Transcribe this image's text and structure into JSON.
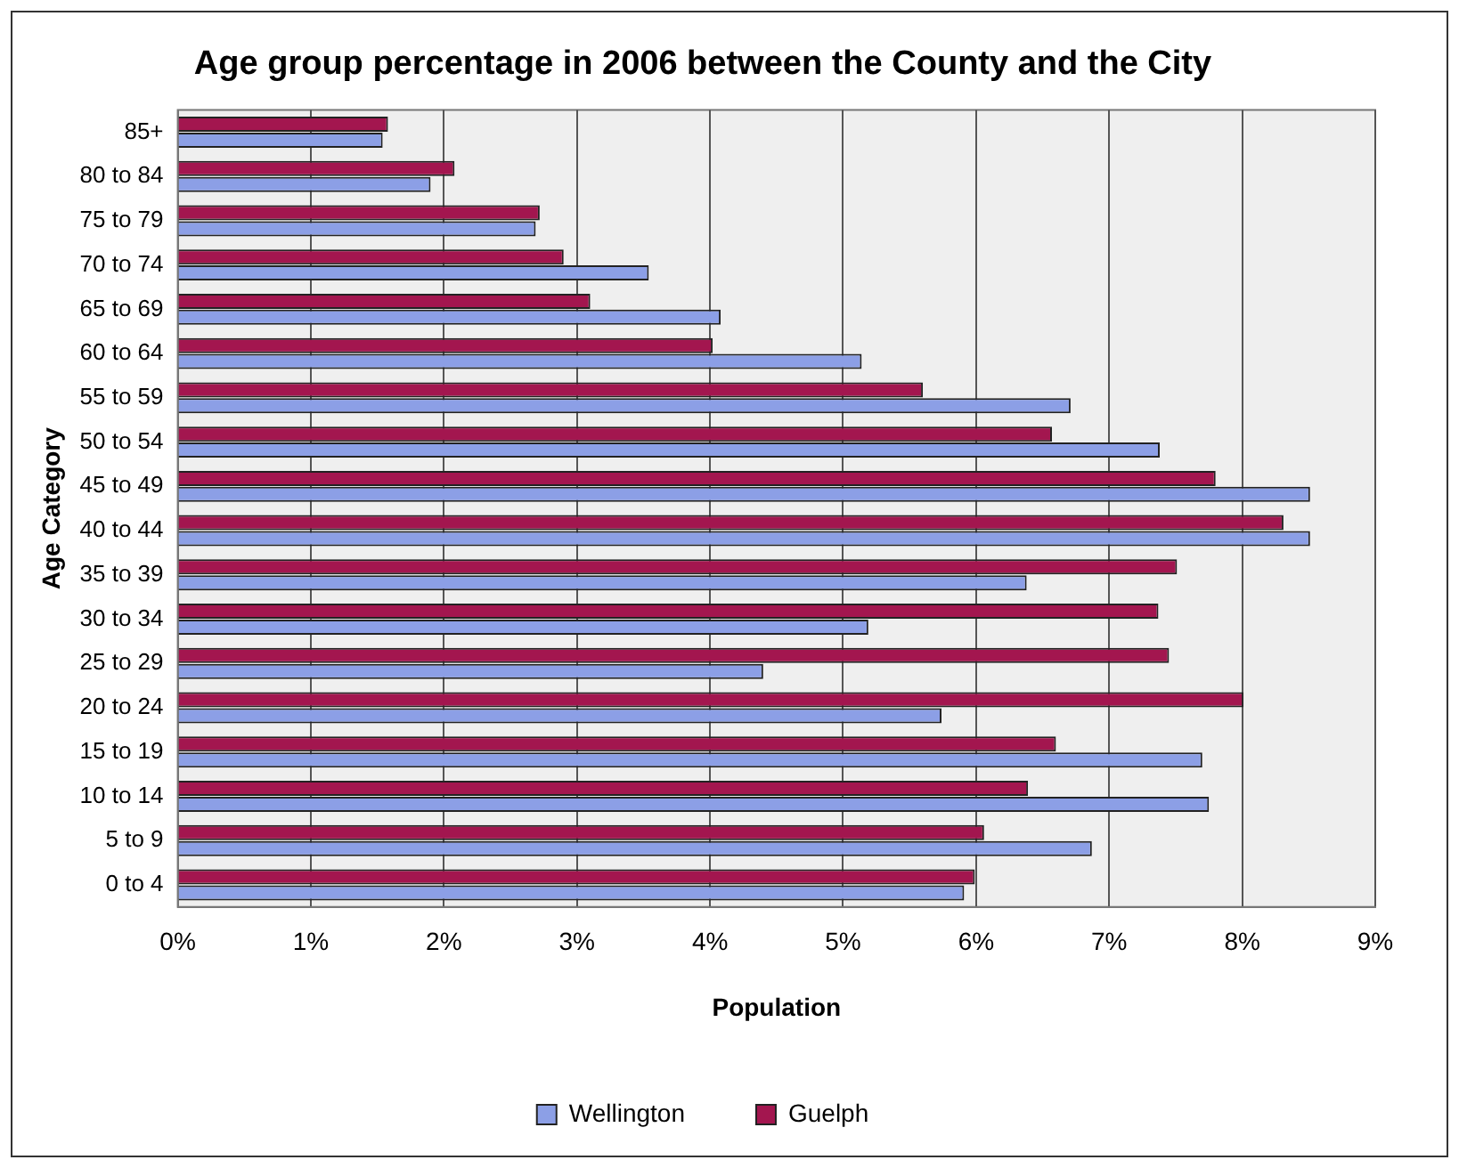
{
  "chart_data": {
    "type": "bar",
    "orientation": "horizontal",
    "title": "Age group percentage in 2006 between the County and the City",
    "xlabel": "Population",
    "ylabel": "Age Category",
    "categories": [
      "85+",
      "80 to 84",
      "75 to 79",
      "70 to 74",
      "65 to 69",
      "60 to 64",
      "55 to 59",
      "50 to 54",
      "45 to 49",
      "40 to 44",
      "35 to 39",
      "30 to 34",
      "25 to 29",
      "20 to 24",
      "15 to 19",
      "10 to 14",
      "5 to 9",
      "0 to 4"
    ],
    "series": [
      {
        "name": "Guelph",
        "color": "#a3164f",
        "values": [
          1.58,
          2.08,
          2.72,
          2.9,
          3.1,
          4.02,
          5.6,
          6.57,
          7.8,
          8.31,
          7.51,
          7.37,
          7.45,
          8.01,
          6.6,
          6.39,
          6.06,
          5.99
        ]
      },
      {
        "name": "Wellington",
        "color": "#8c9fe6",
        "values": [
          1.54,
          1.9,
          2.69,
          3.54,
          4.08,
          5.14,
          6.71,
          7.38,
          8.51,
          8.51,
          6.38,
          5.19,
          4.4,
          5.74,
          7.7,
          7.75,
          6.87,
          5.91
        ]
      }
    ],
    "xlim": [
      0,
      9
    ],
    "xticks": [
      {
        "value": 0,
        "label": "0%"
      },
      {
        "value": 1,
        "label": "1%"
      },
      {
        "value": 2,
        "label": "2%"
      },
      {
        "value": 3,
        "label": "3%"
      },
      {
        "value": 4,
        "label": "4%"
      },
      {
        "value": 5,
        "label": "5%"
      },
      {
        "value": 6,
        "label": "6%"
      },
      {
        "value": 7,
        "label": "7%"
      },
      {
        "value": 8,
        "label": "8%"
      },
      {
        "value": 9,
        "label": "9%"
      }
    ],
    "grid": "x",
    "legend": "bottom"
  }
}
